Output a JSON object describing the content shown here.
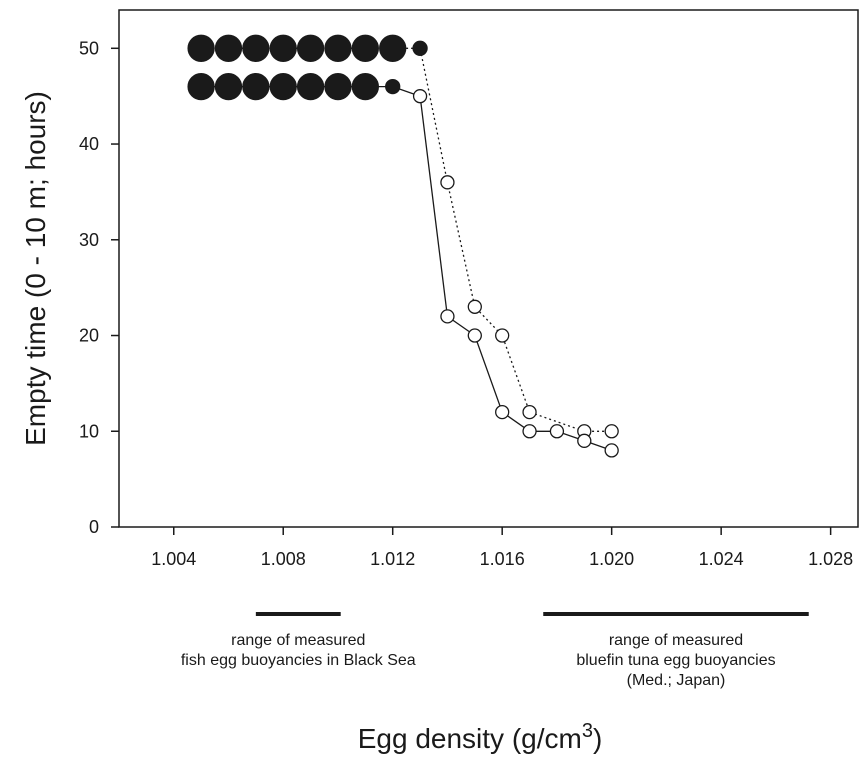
{
  "chart_data": {
    "type": "scatter",
    "xlabel_main": "Egg density (g/cm",
    "xlabel_sup": "3",
    "xlabel_close": ")",
    "ylabel": "Empty time (0 - 10 m; hours)",
    "xlim": [
      1.002,
      1.029
    ],
    "ylim": [
      0,
      54
    ],
    "x_ticks": [
      1.004,
      1.008,
      1.012,
      1.016,
      1.02,
      1.024,
      1.028
    ],
    "x_tick_labels": [
      "1.004",
      "1.008",
      "1.012",
      "1.016",
      "1.020",
      "1.024",
      "1.028"
    ],
    "y_ticks": [
      0,
      10,
      20,
      30,
      40,
      50
    ],
    "y_tick_labels": [
      "0",
      "10",
      "20",
      "30",
      "40",
      "50"
    ],
    "grid": false,
    "series": [
      {
        "line_style": "dotted",
        "points": [
          {
            "x": 1.005,
            "y": 50,
            "filled": true,
            "size": "large"
          },
          {
            "x": 1.006,
            "y": 50,
            "filled": true,
            "size": "large"
          },
          {
            "x": 1.007,
            "y": 50,
            "filled": true,
            "size": "large"
          },
          {
            "x": 1.008,
            "y": 50,
            "filled": true,
            "size": "large"
          },
          {
            "x": 1.009,
            "y": 50,
            "filled": true,
            "size": "large"
          },
          {
            "x": 1.01,
            "y": 50,
            "filled": true,
            "size": "large"
          },
          {
            "x": 1.011,
            "y": 50,
            "filled": true,
            "size": "large"
          },
          {
            "x": 1.012,
            "y": 50,
            "filled": true,
            "size": "large"
          },
          {
            "x": 1.013,
            "y": 50,
            "filled": true,
            "size": "small"
          },
          {
            "x": 1.014,
            "y": 36,
            "filled": false,
            "size": "normal"
          },
          {
            "x": 1.015,
            "y": 23,
            "filled": false,
            "size": "normal"
          },
          {
            "x": 1.016,
            "y": 20,
            "filled": false,
            "size": "normal"
          },
          {
            "x": 1.017,
            "y": 12,
            "filled": false,
            "size": "normal"
          },
          {
            "x": 1.019,
            "y": 10,
            "filled": false,
            "size": "normal"
          },
          {
            "x": 1.02,
            "y": 10,
            "filled": false,
            "size": "normal"
          }
        ]
      },
      {
        "line_style": "solid",
        "points": [
          {
            "x": 1.005,
            "y": 46,
            "filled": true,
            "size": "large"
          },
          {
            "x": 1.006,
            "y": 46,
            "filled": true,
            "size": "large"
          },
          {
            "x": 1.007,
            "y": 46,
            "filled": true,
            "size": "large"
          },
          {
            "x": 1.008,
            "y": 46,
            "filled": true,
            "size": "large"
          },
          {
            "x": 1.009,
            "y": 46,
            "filled": true,
            "size": "large"
          },
          {
            "x": 1.01,
            "y": 46,
            "filled": true,
            "size": "large"
          },
          {
            "x": 1.011,
            "y": 46,
            "filled": true,
            "size": "large"
          },
          {
            "x": 1.012,
            "y": 46,
            "filled": true,
            "size": "small"
          },
          {
            "x": 1.013,
            "y": 45,
            "filled": false,
            "size": "normal"
          },
          {
            "x": 1.014,
            "y": 22,
            "filled": false,
            "size": "normal"
          },
          {
            "x": 1.015,
            "y": 20,
            "filled": false,
            "size": "normal"
          },
          {
            "x": 1.016,
            "y": 12,
            "filled": false,
            "size": "normal"
          },
          {
            "x": 1.017,
            "y": 10,
            "filled": false,
            "size": "normal"
          },
          {
            "x": 1.018,
            "y": 10,
            "filled": false,
            "size": "normal"
          },
          {
            "x": 1.019,
            "y": 9,
            "filled": false,
            "size": "normal"
          },
          {
            "x": 1.02,
            "y": 8,
            "filled": false,
            "size": "normal"
          }
        ]
      }
    ],
    "ranges": [
      {
        "x_from": 1.007,
        "x_to": 1.0101,
        "label_lines": [
          "range of measured",
          "fish egg buoyancies in Black Sea"
        ]
      },
      {
        "x_from": 1.0175,
        "x_to": 1.0272,
        "label_lines": [
          "range of measured",
          "bluefin tuna egg buoyancies",
          "(Med.; Japan)"
        ]
      }
    ]
  }
}
